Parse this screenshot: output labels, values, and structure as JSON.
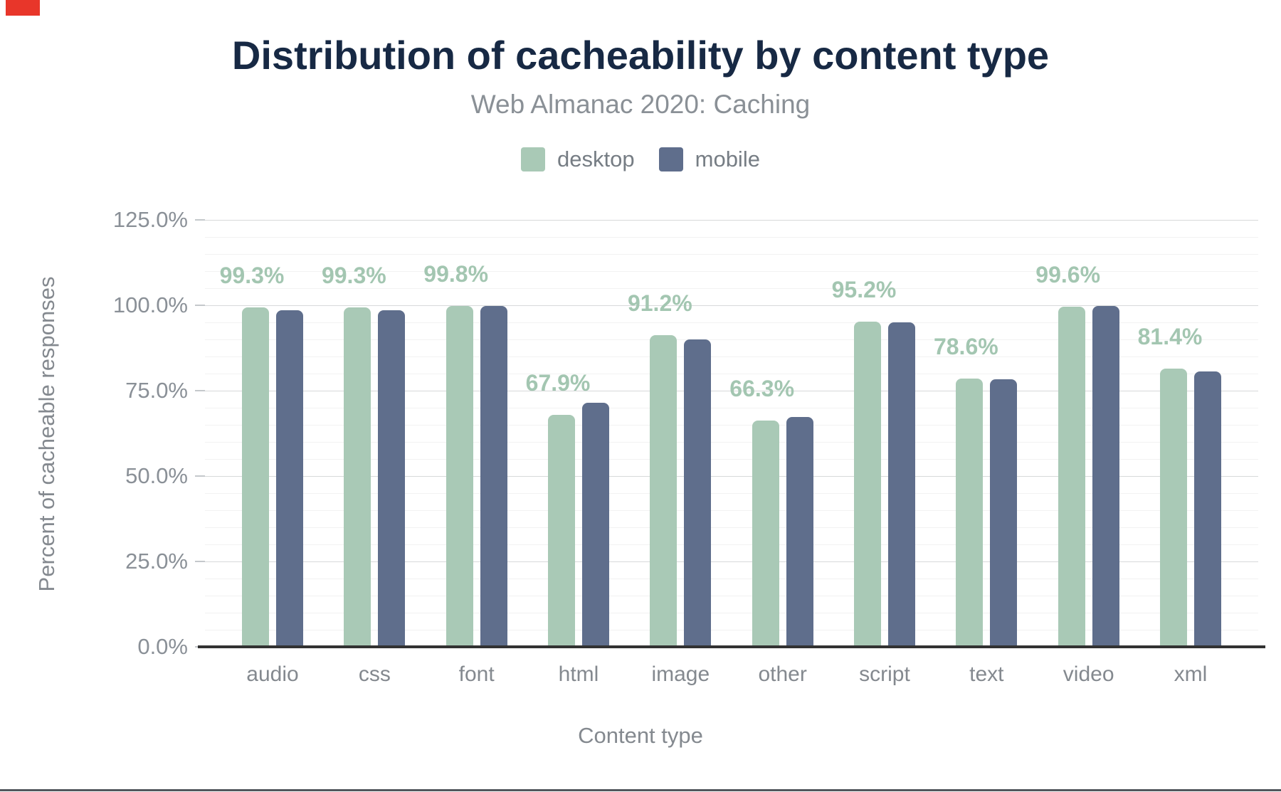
{
  "chart_data": {
    "type": "bar",
    "title": "Distribution of cacheability by content type",
    "subtitle": "Web Almanac 2020: Caching",
    "xlabel": "Content type",
    "ylabel": "Percent of cacheable responses",
    "categories": [
      "audio",
      "css",
      "font",
      "html",
      "image",
      "other",
      "script",
      "text",
      "video",
      "xml"
    ],
    "series": [
      {
        "name": "desktop",
        "color": "#a9c9b6",
        "values": [
          99.3,
          99.3,
          99.8,
          67.9,
          91.2,
          66.3,
          95.2,
          78.6,
          99.6,
          81.4
        ],
        "labels": [
          "99.3%",
          "99.3%",
          "99.8%",
          "67.9%",
          "91.2%",
          "66.3%",
          "95.2%",
          "78.6%",
          "99.6%",
          "81.4%"
        ]
      },
      {
        "name": "mobile",
        "color": "#5f6e8c",
        "values": [
          98.6,
          98.6,
          99.7,
          71.4,
          89.9,
          67.3,
          95.1,
          78.4,
          99.7,
          80.6
        ]
      }
    ],
    "legend": [
      {
        "label": "desktop",
        "color": "#a9c9b6"
      },
      {
        "label": "mobile",
        "color": "#5f6e8c"
      }
    ],
    "legend_position": "top",
    "ylim": [
      0,
      125
    ],
    "yticks": [
      {
        "value": 0,
        "label": "0.0%"
      },
      {
        "value": 25,
        "label": "25.0%"
      },
      {
        "value": 50,
        "label": "50.0%"
      },
      {
        "value": 75,
        "label": "75.0%"
      },
      {
        "value": 100,
        "label": "100.0%"
      },
      {
        "value": 125,
        "label": "125.0%"
      }
    ],
    "grid": {
      "major_step": 25,
      "minor_step": 5,
      "grid_on": true
    }
  },
  "colors": {
    "title": "#172944",
    "subtitle": "#8a9096",
    "legend_text": "#767d84",
    "tick_text": "#8a9097",
    "axis_text": "#84898f",
    "data_label": "#a3c6b1",
    "grid_major": "#d7d9da",
    "grid_minor": "#f2f2f2",
    "axis_line": "#323232",
    "bottom_border": "#51565c",
    "corner_marker": "#e8362a"
  }
}
